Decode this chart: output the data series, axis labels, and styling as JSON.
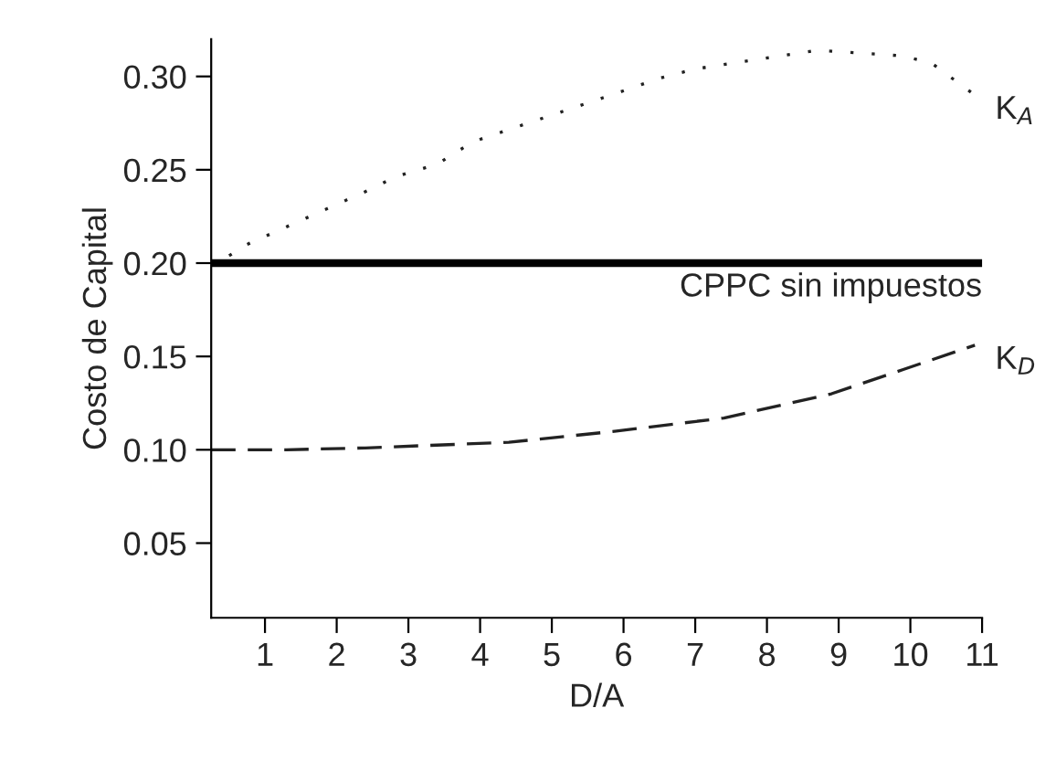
{
  "chart_data": {
    "type": "line",
    "xlabel": "D/A",
    "ylabel": "Costo de Capital",
    "xlim": [
      0.25,
      11
    ],
    "xticks": [
      1,
      2,
      3,
      4,
      5,
      6,
      7,
      8,
      9,
      10,
      11
    ],
    "ylim": [
      0.01,
      0.32
    ],
    "yticks": [
      0.05,
      {
        "value": 0.1,
        "label": "0.10"
      },
      0.15,
      {
        "value": 0.2,
        "label": "0.20"
      },
      0.25,
      {
        "value": 0.3,
        "label": "0.30"
      }
    ],
    "grid": false,
    "legend": false,
    "series": [
      {
        "name": "K$_{A}$",
        "color": "#222222",
        "line_style": "dotted",
        "x": [
          0.5,
          0.75,
          2.5,
          2.8,
          3.4,
          3.9,
          4.9,
          5.9,
          6.5,
          7.0,
          8.7,
          9.9,
          10.3,
          10.9
        ],
        "values": [
          0.204,
          0.21,
          0.24,
          0.246,
          0.253,
          0.265,
          0.278,
          0.291,
          0.299,
          0.304,
          0.314,
          0.311,
          0.307,
          0.29
        ]
      },
      {
        "name": "K$_{D}$",
        "color": "#222222",
        "line_style": "dashed",
        "x": [
          0.25,
          1.3,
          2.4,
          4.4,
          5.9,
          7.4,
          8.9,
          9.9,
          10.9
        ],
        "values": [
          0.1,
          0.1,
          0.101,
          0.104,
          0.11,
          0.117,
          0.13,
          0.143,
          0.156
        ]
      }
    ],
    "ref_lines": [
      {
        "axis": "y",
        "value": 0.2,
        "label": "CPPC sin impuestos",
        "color": "#000000",
        "line_style": "solid"
      }
    ]
  }
}
